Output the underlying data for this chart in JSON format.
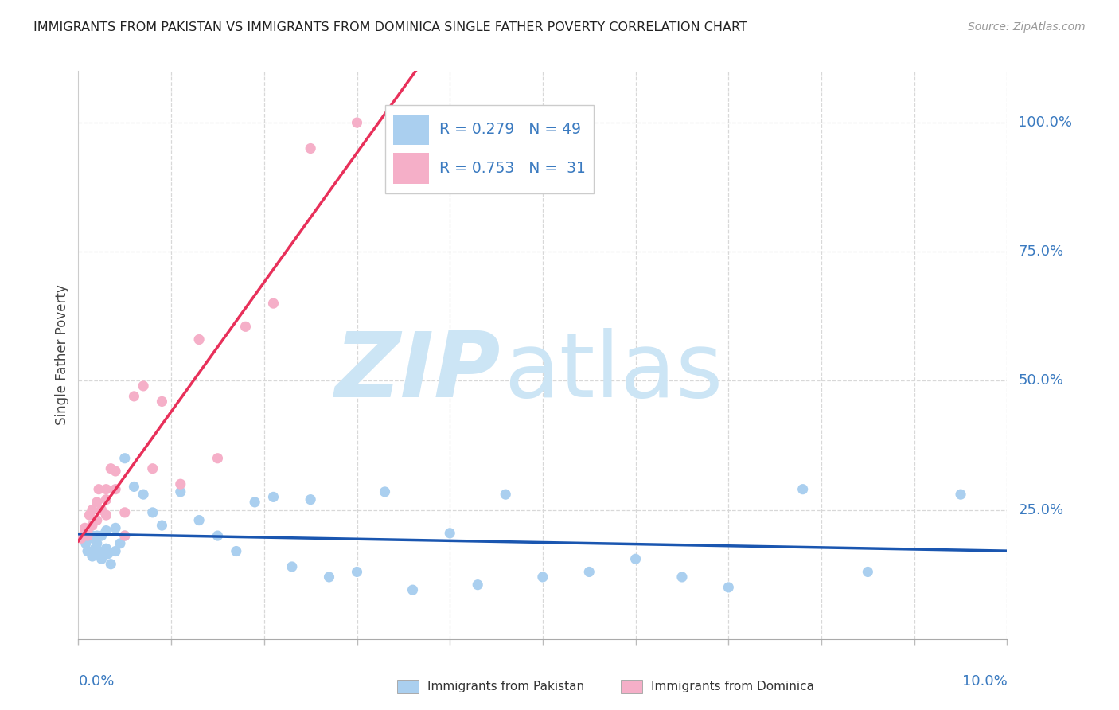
{
  "title": "IMMIGRANTS FROM PAKISTAN VS IMMIGRANTS FROM DOMINICA SINGLE FATHER POVERTY CORRELATION CHART",
  "source": "Source: ZipAtlas.com",
  "ylabel": "Single Father Poverty",
  "pakistan_R": 0.279,
  "pakistan_N": 49,
  "dominica_R": 0.753,
  "dominica_N": 31,
  "pakistan_color": "#aacfef",
  "dominica_color": "#f5afc8",
  "pakistan_line_color": "#1a56b0",
  "dominica_line_color": "#e8305a",
  "axis_label_color": "#3a7ac0",
  "watermark_zip_color": "#cce5f5",
  "watermark_atlas_color": "#cce5f5",
  "background_color": "#ffffff",
  "grid_color": "#d8d8d8",
  "xmin": 0.0,
  "xmax": 0.1,
  "ymin": 0.0,
  "ymax": 1.1,
  "pakistan_x": [
    0.0005,
    0.0008,
    0.001,
    0.001,
    0.0012,
    0.0015,
    0.0015,
    0.0018,
    0.002,
    0.002,
    0.0022,
    0.0025,
    0.0025,
    0.003,
    0.003,
    0.0032,
    0.0035,
    0.004,
    0.004,
    0.0045,
    0.005,
    0.005,
    0.006,
    0.007,
    0.008,
    0.009,
    0.011,
    0.013,
    0.015,
    0.017,
    0.019,
    0.021,
    0.023,
    0.025,
    0.027,
    0.03,
    0.033,
    0.036,
    0.04,
    0.043,
    0.046,
    0.05,
    0.055,
    0.06,
    0.065,
    0.07,
    0.078,
    0.085,
    0.095
  ],
  "pakistan_y": [
    0.195,
    0.185,
    0.2,
    0.17,
    0.195,
    0.16,
    0.2,
    0.175,
    0.185,
    0.2,
    0.17,
    0.155,
    0.2,
    0.175,
    0.21,
    0.165,
    0.145,
    0.17,
    0.215,
    0.185,
    0.2,
    0.35,
    0.295,
    0.28,
    0.245,
    0.22,
    0.285,
    0.23,
    0.2,
    0.17,
    0.265,
    0.275,
    0.14,
    0.27,
    0.12,
    0.13,
    0.285,
    0.095,
    0.205,
    0.105,
    0.28,
    0.12,
    0.13,
    0.155,
    0.12,
    0.1,
    0.29,
    0.13,
    0.28
  ],
  "dominica_x": [
    0.0003,
    0.0005,
    0.0007,
    0.001,
    0.001,
    0.0012,
    0.0015,
    0.0015,
    0.002,
    0.002,
    0.0022,
    0.0025,
    0.003,
    0.003,
    0.003,
    0.0035,
    0.004,
    0.004,
    0.005,
    0.005,
    0.006,
    0.007,
    0.008,
    0.009,
    0.011,
    0.013,
    0.015,
    0.018,
    0.021,
    0.025,
    0.03
  ],
  "dominica_y": [
    0.195,
    0.2,
    0.215,
    0.2,
    0.21,
    0.24,
    0.22,
    0.25,
    0.23,
    0.265,
    0.29,
    0.25,
    0.24,
    0.27,
    0.29,
    0.33,
    0.29,
    0.325,
    0.245,
    0.2,
    0.47,
    0.49,
    0.33,
    0.46,
    0.3,
    0.58,
    0.35,
    0.605,
    0.65,
    0.95,
    1.0
  ],
  "dominica_trend_x_start": 0.0,
  "dominica_trend_x_end": 0.1
}
